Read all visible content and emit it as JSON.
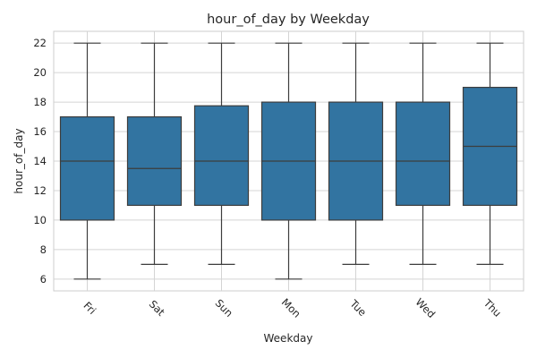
{
  "chart_data": {
    "type": "boxplot",
    "title": "hour_of_day by Weekday",
    "xlabel": "Weekday",
    "ylabel": "hour_of_day",
    "ylim": [
      5.2,
      22.8
    ],
    "yticks": [
      6,
      8,
      10,
      12,
      14,
      16,
      18,
      20,
      22
    ],
    "grid": true,
    "box_color": "#3274a1",
    "categories": [
      "Fri",
      "Sat",
      "Sun",
      "Mon",
      "Tue",
      "Wed",
      "Thu"
    ],
    "boxes": [
      {
        "category": "Fri",
        "whisker_low": 6,
        "q1": 10,
        "median": 14,
        "q3": 17,
        "whisker_high": 22
      },
      {
        "category": "Sat",
        "whisker_low": 7,
        "q1": 11,
        "median": 13.5,
        "q3": 17,
        "whisker_high": 22
      },
      {
        "category": "Sun",
        "whisker_low": 7,
        "q1": 11,
        "median": 14,
        "q3": 17.75,
        "whisker_high": 22
      },
      {
        "category": "Mon",
        "whisker_low": 6,
        "q1": 10,
        "median": 14,
        "q3": 18,
        "whisker_high": 22
      },
      {
        "category": "Tue",
        "whisker_low": 7,
        "q1": 10,
        "median": 14,
        "q3": 18,
        "whisker_high": 22
      },
      {
        "category": "Wed",
        "whisker_low": 7,
        "q1": 11,
        "median": 14,
        "q3": 18,
        "whisker_high": 22
      },
      {
        "category": "Thu",
        "whisker_low": 7,
        "q1": 11,
        "median": 15,
        "q3": 19,
        "whisker_high": 22
      }
    ]
  }
}
